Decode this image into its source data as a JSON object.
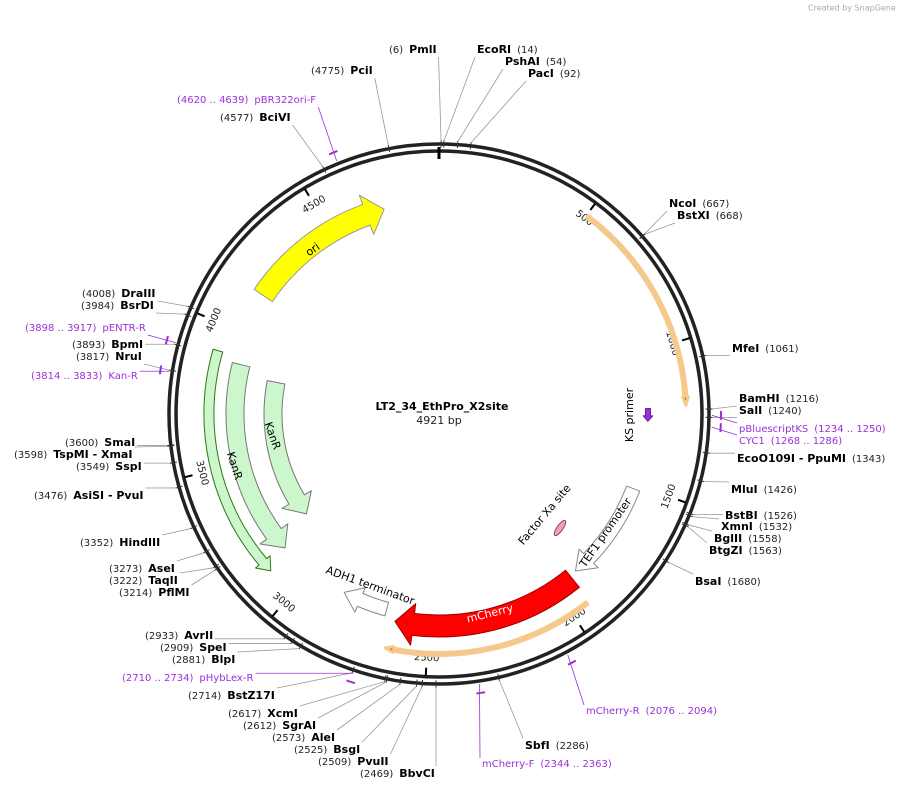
{
  "header": {
    "credit": "Created by SnapGene"
  },
  "map": {
    "title": "LT2_34_EthPro_X2site",
    "length": "4921 bp",
    "ticks": [
      "500",
      "1000",
      "1500",
      "2000",
      "2500",
      "3000",
      "3500",
      "4000",
      "4500"
    ]
  },
  "enzymes": [
    {
      "name": "PmlI",
      "position": "(6)"
    },
    {
      "name": "EcoRI",
      "position": "(14)"
    },
    {
      "name": "PshAI",
      "position": "(54)"
    },
    {
      "name": "PacI",
      "position": "(92)"
    },
    {
      "name": "PciI",
      "position": "(4775)"
    },
    {
      "name": "BciVI",
      "position": "(4577)"
    },
    {
      "name": "NcoI",
      "position": "(667)"
    },
    {
      "name": "BstXI",
      "position": "(668)"
    },
    {
      "name": "MfeI",
      "position": "(1061)"
    },
    {
      "name": "BamHI",
      "position": "(1216)"
    },
    {
      "name": "SalI",
      "position": "(1240)"
    },
    {
      "name": "EcoO109I - PpuMI",
      "position": "(1343)"
    },
    {
      "name": "MluI",
      "position": "(1426)"
    },
    {
      "name": "BstBI",
      "position": "(1526)"
    },
    {
      "name": "XmnI",
      "position": "(1532)"
    },
    {
      "name": "BglII",
      "position": "(1558)"
    },
    {
      "name": "BtgZI",
      "position": "(1563)"
    },
    {
      "name": "BsaI",
      "position": "(1680)"
    },
    {
      "name": "SbfI",
      "position": "(2286)"
    },
    {
      "name": "BbvCI",
      "position": "(2469)"
    },
    {
      "name": "PvuII",
      "position": "(2509)"
    },
    {
      "name": "BsgI",
      "position": "(2525)"
    },
    {
      "name": "AleI",
      "position": "(2573)"
    },
    {
      "name": "SgrAI",
      "position": "(2612)"
    },
    {
      "name": "XcmI",
      "position": "(2617)"
    },
    {
      "name": "BstZ17I",
      "position": "(2714)"
    },
    {
      "name": "BlpI",
      "position": "(2881)"
    },
    {
      "name": "SpeI",
      "position": "(2909)"
    },
    {
      "name": "AvrII",
      "position": "(2933)"
    },
    {
      "name": "PflMI",
      "position": "(3214)"
    },
    {
      "name": "TaqII",
      "position": "(3222)"
    },
    {
      "name": "AseI",
      "position": "(3273)"
    },
    {
      "name": "HindIII",
      "position": "(3352)"
    },
    {
      "name": "AsiSI - PvuI",
      "position": "(3476)"
    },
    {
      "name": "SspI",
      "position": "(3549)"
    },
    {
      "name": "TspMI - XmaI",
      "position": "(3598)"
    },
    {
      "name": "SmaI",
      "position": "(3600)"
    },
    {
      "name": "NruI",
      "position": "(3817)"
    },
    {
      "name": "BpmI",
      "position": "(3893)"
    },
    {
      "name": "BsrDI",
      "position": "(3984)"
    },
    {
      "name": "DraIII",
      "position": "(4008)"
    }
  ],
  "primers": [
    {
      "name": "pBR322ori-F",
      "range": "(4620 .. 4639)"
    },
    {
      "name": "pBluescriptKS",
      "range": "(1234 .. 1250)"
    },
    {
      "name": "CYC1",
      "range": "(1268 .. 1286)"
    },
    {
      "name": "mCherry-R",
      "range": "(2076 .. 2094)"
    },
    {
      "name": "mCherry-F",
      "range": "(2344 .. 2363)"
    },
    {
      "name": "pHybLex-R",
      "range": "(2710 .. 2734)"
    },
    {
      "name": "pENTR-R",
      "range": "(3898 .. 3917)"
    },
    {
      "name": "Kan-R",
      "range": "(3814 .. 3833)"
    }
  ],
  "features": [
    {
      "label": "ori"
    },
    {
      "label": "KanR"
    },
    {
      "label": "KanR"
    },
    {
      "label": "KS primer"
    },
    {
      "label": "Factor Xa site"
    },
    {
      "label": "TEF1 promoter"
    },
    {
      "label": "mCherry"
    },
    {
      "label": "ADH1 terminator"
    }
  ]
}
